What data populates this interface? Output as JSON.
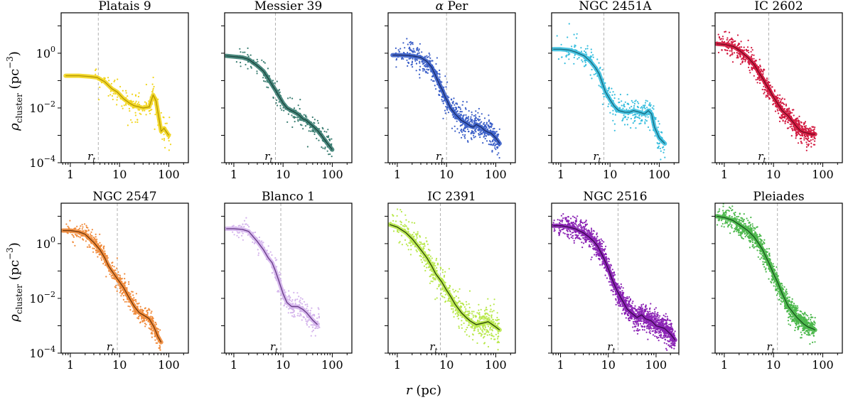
{
  "figure": {
    "xlabel_main": "r",
    "xlabel_unit": " (pc)",
    "ylabel_main": "ρ",
    "ylabel_sub": "cluster",
    "ylabel_unit": " (pc",
    "ylabel_exp": "−3",
    "ylabel_close": ")",
    "rt_main": "r",
    "rt_sub": "t",
    "x_ticks": [
      {
        "value": 1,
        "label": "1"
      },
      {
        "value": 10,
        "label": "10"
      },
      {
        "value": 100,
        "label": "100"
      }
    ],
    "y_ticks": [
      {
        "value": 1,
        "base": "10",
        "exp": "0"
      },
      {
        "value": 0.01,
        "base": "10",
        "exp": "−2"
      },
      {
        "value": 0.0001,
        "base": "10",
        "exp": "−4"
      }
    ]
  },
  "chart_data": [
    {
      "type": "scatter",
      "title": "Platais 9",
      "color": "#f2d51c",
      "line_color": "#b89a00",
      "xlim": [
        0.65,
        250
      ],
      "ylim": [
        0.0001,
        30
      ],
      "x_log": true,
      "y_log": true,
      "r_t": 3.7,
      "profile": {
        "x": [
          0.8,
          1.5,
          2.5,
          3.5,
          5,
          7,
          9,
          12,
          16,
          20,
          25,
          30,
          40,
          48,
          55,
          62,
          70,
          80,
          100
        ],
        "y": [
          0.15,
          0.15,
          0.14,
          0.13,
          0.09,
          0.05,
          0.038,
          0.022,
          0.015,
          0.012,
          0.011,
          0.01,
          0.011,
          0.03,
          0.018,
          0.005,
          0.0014,
          0.0018,
          0.001
        ]
      },
      "x_range": [
        3,
        110
      ],
      "spread": 0.28,
      "n_points": 160
    },
    {
      "type": "scatter",
      "title": "Messier 39",
      "color": "#3a7d71",
      "line_color": "#1f4a43",
      "xlim": [
        0.65,
        250
      ],
      "ylim": [
        0.0001,
        30
      ],
      "x_log": true,
      "y_log": true,
      "r_t": 7,
      "profile": {
        "x": [
          0.7,
          1,
          1.5,
          2,
          3,
          4,
          5,
          6,
          7,
          8,
          10,
          12,
          15,
          20,
          25,
          30,
          40,
          50,
          60,
          80,
          100
        ],
        "y": [
          0.8,
          0.75,
          0.7,
          0.6,
          0.35,
          0.22,
          0.12,
          0.07,
          0.045,
          0.03,
          0.015,
          0.01,
          0.008,
          0.006,
          0.004,
          0.0035,
          0.0022,
          0.0015,
          0.001,
          0.0005,
          0.0003
        ]
      },
      "x_range": [
        1,
        100
      ],
      "spread": 0.22,
      "n_points": 220
    },
    {
      "type": "scatter",
      "title": "αPer",
      "title_greek": "α",
      "title_rest": " Per",
      "color": "#3b5fc8",
      "line_color": "#1c2f70",
      "xlim": [
        0.65,
        250
      ],
      "ylim": [
        0.0001,
        30
      ],
      "x_log": true,
      "y_log": true,
      "r_t": 10,
      "profile": {
        "x": [
          0.8,
          1.2,
          2,
          3,
          4,
          5,
          6,
          7,
          8,
          10,
          12,
          15,
          20,
          25,
          30,
          35,
          40,
          50,
          60,
          70,
          80,
          100,
          120
        ],
        "y": [
          0.85,
          0.85,
          0.8,
          0.7,
          0.5,
          0.3,
          0.15,
          0.08,
          0.05,
          0.02,
          0.01,
          0.006,
          0.0035,
          0.0028,
          0.0022,
          0.002,
          0.0025,
          0.002,
          0.0015,
          0.0013,
          0.0012,
          0.0008,
          0.0005
        ]
      },
      "x_range": [
        0.8,
        120
      ],
      "spread": 0.25,
      "n_points": 650
    },
    {
      "type": "scatter",
      "title": "NGC 2451A",
      "color": "#38bede",
      "line_color": "#1a6d83",
      "xlim": [
        0.65,
        250
      ],
      "ylim": [
        0.0001,
        30
      ],
      "x_log": true,
      "y_log": true,
      "r_t": 7.5,
      "profile": {
        "x": [
          0.7,
          1,
          1.5,
          2,
          3,
          4,
          5,
          6,
          7,
          8,
          10,
          12,
          15,
          20,
          25,
          30,
          40,
          50,
          60,
          70,
          80,
          100,
          130
        ],
        "y": [
          1.4,
          1.4,
          1.3,
          1.1,
          0.8,
          0.5,
          0.3,
          0.18,
          0.08,
          0.04,
          0.02,
          0.012,
          0.008,
          0.007,
          0.007,
          0.008,
          0.007,
          0.006,
          0.008,
          0.006,
          0.002,
          0.0008,
          0.0005
        ]
      },
      "x_range": [
        0.8,
        130
      ],
      "spread": 0.28,
      "n_points": 350
    },
    {
      "type": "scatter",
      "title": "IC 2602",
      "color": "#d2173e",
      "line_color": "#7a0b22",
      "xlim": [
        0.65,
        250
      ],
      "ylim": [
        0.0001,
        30
      ],
      "x_log": true,
      "y_log": true,
      "r_t": 8,
      "profile": {
        "x": [
          0.7,
          1,
          1.5,
          2,
          3,
          4,
          5,
          6,
          8,
          10,
          12,
          15,
          20,
          25,
          30,
          35,
          40,
          50,
          60,
          70
        ],
        "y": [
          2.2,
          2.1,
          1.8,
          1.3,
          0.7,
          0.4,
          0.2,
          0.12,
          0.05,
          0.025,
          0.015,
          0.008,
          0.005,
          0.003,
          0.002,
          0.0015,
          0.0013,
          0.0012,
          0.0011,
          0.0011
        ]
      },
      "x_range": [
        0.7,
        70
      ],
      "spread": 0.2,
      "n_points": 700
    },
    {
      "type": "scatter",
      "title": "NGC 2547",
      "color": "#f08a3a",
      "line_color": "#7a3c0c",
      "xlim": [
        0.65,
        250
      ],
      "ylim": [
        0.0001,
        30
      ],
      "x_log": true,
      "y_log": true,
      "r_t": 9,
      "profile": {
        "x": [
          0.7,
          1,
          1.5,
          2,
          3,
          4,
          5,
          6,
          8,
          10,
          12,
          15,
          20,
          25,
          30,
          40,
          50,
          60,
          70
        ],
        "y": [
          3,
          3,
          2.7,
          2.2,
          1.1,
          0.6,
          0.3,
          0.15,
          0.07,
          0.04,
          0.025,
          0.012,
          0.005,
          0.003,
          0.0025,
          0.0018,
          0.0009,
          0.0004,
          0.00025
        ]
      },
      "x_range": [
        0.7,
        70
      ],
      "spread": 0.2,
      "n_points": 550
    },
    {
      "type": "scatter",
      "title": "Blanco 1",
      "color": "#d4b4ec",
      "line_color": "#6a3f8a",
      "xlim": [
        0.65,
        250
      ],
      "ylim": [
        0.0001,
        30
      ],
      "x_log": true,
      "y_log": true,
      "r_t": 9,
      "profile": {
        "x": [
          0.7,
          1,
          1.5,
          2,
          3,
          4,
          5,
          6,
          7,
          8,
          10,
          12,
          15,
          20,
          25,
          30,
          40,
          50
        ],
        "y": [
          3.5,
          3.5,
          3.3,
          2.8,
          1.2,
          0.6,
          0.3,
          0.2,
          0.1,
          0.05,
          0.015,
          0.007,
          0.005,
          0.005,
          0.004,
          0.003,
          0.0016,
          0.0011
        ]
      },
      "x_range": [
        0.8,
        55
      ],
      "spread": 0.22,
      "n_points": 300
    },
    {
      "type": "scatter",
      "title": "IC 2391",
      "color": "#b8e84a",
      "line_color": "#2f4a0a",
      "xlim": [
        0.65,
        250
      ],
      "ylim": [
        0.0001,
        30
      ],
      "x_log": true,
      "y_log": true,
      "r_t": 7.5,
      "profile": {
        "x": [
          0.7,
          1,
          1.5,
          2,
          3,
          4,
          5,
          6,
          8,
          10,
          12,
          15,
          20,
          25,
          30,
          40,
          50,
          60,
          70,
          80,
          100,
          120
        ],
        "y": [
          5,
          4,
          2.5,
          1.5,
          0.6,
          0.3,
          0.15,
          0.08,
          0.04,
          0.02,
          0.012,
          0.006,
          0.003,
          0.002,
          0.0015,
          0.0011,
          0.0012,
          0.0013,
          0.0014,
          0.0012,
          0.0009,
          0.0007
        ]
      },
      "x_range": [
        0.7,
        120
      ],
      "spread": 0.3,
      "n_points": 600
    },
    {
      "type": "scatter",
      "title": "NGC 2516",
      "color": "#8a22b4",
      "line_color": "#3d0a52",
      "xlim": [
        0.65,
        300
      ],
      "ylim": [
        0.0001,
        30
      ],
      "x_log": true,
      "y_log": true,
      "r_t": 16,
      "profile": {
        "x": [
          0.7,
          1,
          1.5,
          2,
          3,
          4,
          5,
          6,
          8,
          10,
          12,
          15,
          20,
          25,
          30,
          40,
          50,
          60,
          80,
          100,
          150,
          200,
          250
        ],
        "y": [
          4.5,
          4.5,
          4,
          3.5,
          2.5,
          1.7,
          1.2,
          0.8,
          0.3,
          0.12,
          0.05,
          0.02,
          0.008,
          0.004,
          0.003,
          0.002,
          0.0025,
          0.0018,
          0.0015,
          0.001,
          0.0008,
          0.0005,
          0.0003
        ]
      },
      "x_range": [
        0.7,
        250
      ],
      "spread": 0.22,
      "n_points": 1500
    },
    {
      "type": "scatter",
      "title": "Pleiades",
      "color": "#4cb84c",
      "line_color": "#1a5a20",
      "xlim": [
        0.65,
        250
      ],
      "ylim": [
        0.0001,
        30
      ],
      "x_log": true,
      "y_log": true,
      "r_t": 12,
      "profile": {
        "x": [
          0.7,
          1,
          1.5,
          2,
          3,
          4,
          5,
          6,
          8,
          10,
          12,
          15,
          20,
          25,
          30,
          40,
          50,
          60,
          70
        ],
        "y": [
          10,
          9,
          7,
          5,
          3,
          1.8,
          1,
          0.6,
          0.2,
          0.08,
          0.04,
          0.015,
          0.005,
          0.003,
          0.002,
          0.0012,
          0.0009,
          0.0008,
          0.0007
        ]
      },
      "x_range": [
        0.7,
        70
      ],
      "spread": 0.2,
      "n_points": 1100
    }
  ]
}
